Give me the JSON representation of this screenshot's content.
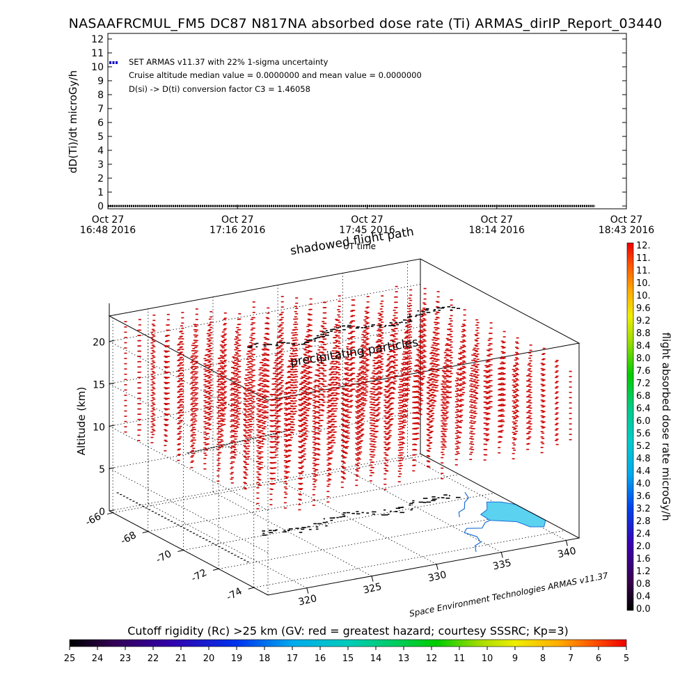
{
  "title": "NASAAFRCMUL_FM5 DC87 N817NA absorbed dose rate (Ti) ARMAS_dirIP_Report_03440",
  "chart_data": [
    {
      "type": "scatter",
      "ylabel": "dD(Ti)/dt microGy/h",
      "xlabel": "UT time",
      "ylim": [
        0,
        12
      ],
      "yticks": [
        "0",
        "1",
        "2",
        "3",
        "4",
        "5",
        "6",
        "7",
        "8",
        "9",
        "10",
        "11",
        "12"
      ],
      "xticks": [
        {
          "day": "Oct 27",
          "time": "16:48 2016"
        },
        {
          "day": "Oct 27",
          "time": "17:16 2016"
        },
        {
          "day": "Oct 27",
          "time": "17:45 2016"
        },
        {
          "day": "Oct 27",
          "time": "18:14 2016"
        },
        {
          "day": "Oct 27",
          "time": "18:43 2016"
        }
      ],
      "x_range": [
        "2016-10-27 16:48",
        "2016-10-27 18:43"
      ],
      "series": [
        {
          "x_start": "2016-10-27 16:48",
          "x_end": "2016-10-27 18:36",
          "value": 0.0
        }
      ],
      "legend": {
        "symbol_color": "#0000cc",
        "lines": [
          "SET ARMAS v11.37 with 22% 1-sigma uncertainty",
          "Cruise altitude median value = 0.0000000 and mean value = 0.0000000",
          "D(si) -> D(ti) conversion factor C3 = 1.46058"
        ]
      },
      "grid": false
    },
    {
      "type": "scatter",
      "zlabel": "Altitude (km)",
      "zticks": [
        "0",
        "5",
        "10",
        "15",
        "20"
      ],
      "zlim": [
        0,
        23
      ],
      "lat_ticks": [
        "-66",
        "-68",
        "-70",
        "-72",
        "-74"
      ],
      "lon_ticks": [
        "320",
        "325",
        "330",
        "335",
        "340"
      ],
      "lat_range": [
        -74.8,
        -65.8
      ],
      "lon_range": [
        317,
        341
      ],
      "annotations": [
        "shadowed flight path",
        "UT time",
        "precipitating particles"
      ],
      "particle_color": "#cc0000",
      "particle_altitude_km": [
        9,
        24
      ],
      "flight_altitude_km": 22,
      "coast_color": "#1a6fd8",
      "ice_color": "#5ad2f0",
      "credit": "Space Environment Technologies ARMAS v11.37",
      "dose_colorbar": {
        "label": "flight absorbed dose rate microGy/h",
        "ticks": [
          "0.0",
          "0.4",
          "0.8",
          "1.2",
          "1.6",
          "2.0",
          "2.4",
          "2.8",
          "3.2",
          "3.6",
          "4.0",
          "4.4",
          "4.8",
          "5.2",
          "5.6",
          "6.0",
          "6.4",
          "6.8",
          "7.2",
          "7.6",
          "8.0",
          "8.4",
          "8.8",
          "9.2",
          "9.6",
          "10.",
          "10.",
          "11.",
          "11.",
          "12."
        ],
        "range": [
          0,
          12
        ]
      }
    },
    {
      "type": "heatmap",
      "title": "Cutoff rigidity (Rc) >25 km (GV: red = greatest hazard; courtesy SSSRC; Kp=3)",
      "ticks": [
        "25",
        "24",
        "23",
        "22",
        "21",
        "20",
        "19",
        "18",
        "17",
        "16",
        "15",
        "14",
        "13",
        "12",
        "11",
        "10",
        "9",
        "8",
        "7",
        "6",
        "5"
      ],
      "range": [
        25,
        5
      ]
    }
  ]
}
